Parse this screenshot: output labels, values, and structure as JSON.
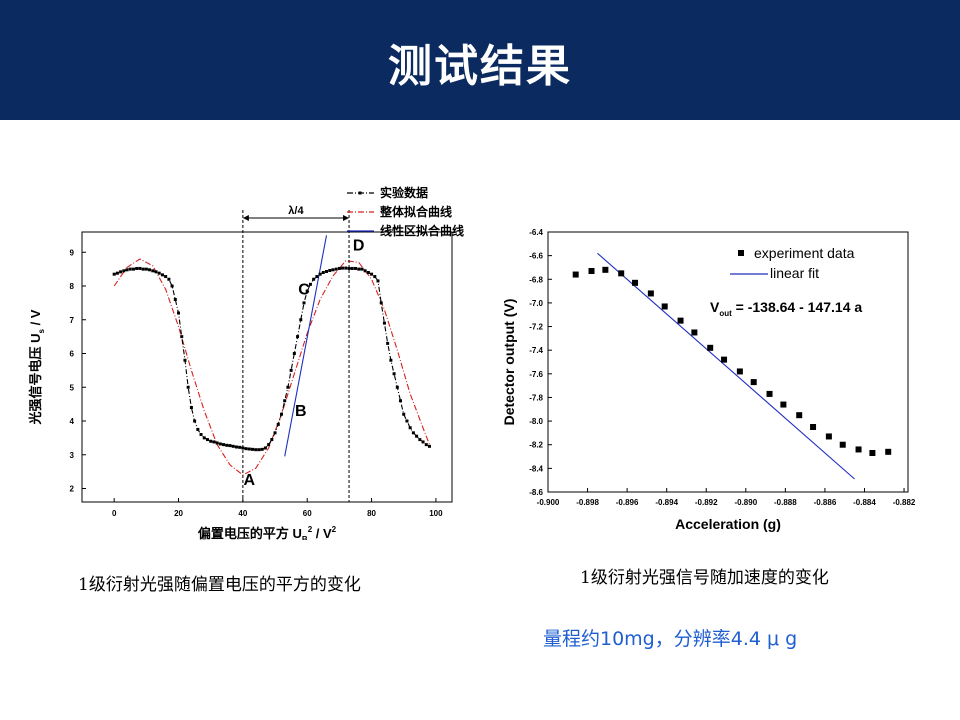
{
  "slide": {
    "title": "测试结果",
    "caption_left": "1级衍射光强随偏置电压的平方的变化",
    "caption_right": "1级衍射光强信号随加速度的变化",
    "note": "量程约10mg，分辨率4.4 μ g"
  },
  "colors": {
    "header_bg": "#0b2a60",
    "data": "#000000",
    "overall_fit": "#d42020",
    "linear_fit": "#1f2fbf",
    "note": "#1f5fd1"
  },
  "chart_data": [
    {
      "type": "line",
      "xlabel": "偏置电压的平方 U_B² / V²",
      "xlabel_main": "偏置电压的平方 U",
      "xlabel_sub": "B",
      "xlabel_sup": "2",
      "xlabel_tail": " / V",
      "xlabel_tail_sup": "2",
      "ylabel": "光强信号电压 U_s / V",
      "ylabel_main": "光强信号电压 U",
      "ylabel_sub": "s",
      "ylabel_tail": " / V",
      "xlim": [
        -10,
        105
      ],
      "ylim": [
        1.6,
        9.6
      ],
      "xticks": [
        0,
        20,
        40,
        60,
        80,
        100
      ],
      "yticks": [
        2,
        3,
        4,
        5,
        6,
        7,
        8,
        9
      ],
      "legend_position": "top-right",
      "series": [
        {
          "name": "实验数据",
          "style": "dash-dot with square markers",
          "color": "#000000",
          "x": [
            0,
            1,
            2,
            3,
            4,
            5,
            6,
            7,
            8,
            9,
            10,
            11,
            12,
            13,
            14,
            15,
            16,
            17,
            18,
            19,
            20,
            21,
            22,
            23,
            24,
            25,
            26,
            27,
            28,
            29,
            30,
            31,
            32,
            33,
            34,
            35,
            36,
            37,
            38,
            39,
            40,
            41,
            42,
            43,
            44,
            45,
            46,
            47,
            48,
            49,
            50,
            51,
            52,
            53,
            54,
            55,
            56,
            57,
            58,
            59,
            60,
            61,
            62,
            63,
            64,
            65,
            66,
            67,
            68,
            69,
            70,
            71,
            72,
            73,
            74,
            75,
            76,
            77,
            78,
            79,
            80,
            81,
            82,
            83,
            84,
            85,
            86,
            87,
            88,
            89,
            90,
            91,
            92,
            93,
            94,
            95,
            96,
            97,
            98
          ],
          "y": [
            8.35,
            8.38,
            8.42,
            8.45,
            8.48,
            8.5,
            8.5,
            8.52,
            8.52,
            8.5,
            8.5,
            8.48,
            8.45,
            8.42,
            8.38,
            8.33,
            8.28,
            8.2,
            8.0,
            7.6,
            7.2,
            6.5,
            5.8,
            5.0,
            4.4,
            4.0,
            3.75,
            3.6,
            3.5,
            3.45,
            3.4,
            3.38,
            3.35,
            3.32,
            3.3,
            3.28,
            3.27,
            3.25,
            3.23,
            3.22,
            3.2,
            3.18,
            3.17,
            3.16,
            3.15,
            3.15,
            3.16,
            3.2,
            3.3,
            3.45,
            3.65,
            3.9,
            4.2,
            4.6,
            5.0,
            5.5,
            6.0,
            6.5,
            7.0,
            7.5,
            7.85,
            8.05,
            8.2,
            8.28,
            8.35,
            8.4,
            8.43,
            8.46,
            8.48,
            8.5,
            8.52,
            8.53,
            8.53,
            8.52,
            8.52,
            8.52,
            8.5,
            8.5,
            8.45,
            8.4,
            8.35,
            8.28,
            8.15,
            7.5,
            6.9,
            6.3,
            5.8,
            5.4,
            5.0,
            4.6,
            4.2,
            4.0,
            3.8,
            3.65,
            3.55,
            3.45,
            3.38,
            3.3,
            3.25
          ]
        },
        {
          "name": "整体拟合曲线",
          "style": "dash-dot",
          "color": "#d42020",
          "x": [
            0,
            4,
            8,
            12,
            16,
            20,
            24,
            28,
            32,
            36,
            40,
            44,
            48,
            52,
            56,
            60,
            64,
            68,
            72,
            76,
            80,
            84,
            88,
            92,
            96,
            98
          ],
          "y": [
            8.0,
            8.55,
            8.8,
            8.6,
            7.9,
            6.8,
            5.5,
            4.3,
            3.3,
            2.7,
            2.4,
            2.6,
            3.2,
            4.2,
            5.4,
            6.6,
            7.6,
            8.3,
            8.75,
            8.7,
            8.2,
            7.3,
            6.1,
            4.8,
            3.8,
            3.3
          ]
        },
        {
          "name": "线性区拟合曲线",
          "style": "solid",
          "color": "#1f2fbf",
          "x": [
            53,
            66
          ],
          "y": [
            2.95,
            9.5
          ]
        }
      ],
      "annotations": [
        {
          "label": "A",
          "x": 42,
          "y": 2.1
        },
        {
          "label": "B",
          "x": 58,
          "y": 4.15
        },
        {
          "label": "C",
          "x": 59,
          "y": 7.75
        },
        {
          "label": "D",
          "x": 76,
          "y": 9.05
        }
      ],
      "interval": {
        "label": "λ/4",
        "x_start": 40,
        "x_end": 73
      }
    },
    {
      "type": "scatter",
      "xlabel": "Acceleration (g)",
      "ylabel": "Detector output (V)",
      "xlim": [
        -0.9,
        -0.8818
      ],
      "ylim": [
        -8.6,
        -6.4
      ],
      "xticks": [
        -0.9,
        -0.898,
        -0.896,
        -0.894,
        -0.892,
        -0.89,
        -0.888,
        -0.886,
        -0.884,
        -0.882
      ],
      "xtick_labels": [
        "-0.900",
        "-0.898",
        "-0.896",
        "-0.894",
        "-0.892",
        "-0.890",
        "-0.888",
        "-0.886",
        "-0.884",
        "-0.882"
      ],
      "yticks": [
        -6.4,
        -6.6,
        -6.8,
        -7.0,
        -7.2,
        -7.4,
        -7.6,
        -7.8,
        -8.0,
        -8.2,
        -8.4,
        -8.6
      ],
      "ytick_labels": [
        "-6.4",
        "-6.6",
        "-6.8",
        "-7.0",
        "-7.2",
        "-7.4",
        "-7.6",
        "-7.8",
        "-8.0",
        "-8.2",
        "-8.4",
        "-8.6"
      ],
      "legend_position": "top-right",
      "equation": {
        "prefix": "V",
        "sub": "out",
        "text": " = -138.64 - 147.14 a"
      },
      "series": [
        {
          "name": "experiment data",
          "style": "square markers",
          "color": "#000000",
          "x": [
            -0.8986,
            -0.8978,
            -0.8971,
            -0.8963,
            -0.8956,
            -0.8948,
            -0.8941,
            -0.8933,
            -0.8926,
            -0.8918,
            -0.8911,
            -0.8903,
            -0.8896,
            -0.8888,
            -0.8881,
            -0.8873,
            -0.8866,
            -0.8858,
            -0.8851,
            -0.8843,
            -0.8836,
            -0.8828
          ],
          "y": [
            -6.76,
            -6.73,
            -6.72,
            -6.75,
            -6.83,
            -6.92,
            -7.03,
            -7.15,
            -7.25,
            -7.38,
            -7.48,
            -7.58,
            -7.67,
            -7.77,
            -7.86,
            -7.95,
            -8.05,
            -8.13,
            -8.2,
            -8.24,
            -8.27,
            -8.26
          ]
        },
        {
          "name": "linear fit",
          "style": "solid line",
          "color": "#1f2fbf",
          "x": [
            -0.8975,
            -0.8845
          ],
          "y": [
            -6.58,
            -8.49
          ]
        }
      ]
    }
  ]
}
